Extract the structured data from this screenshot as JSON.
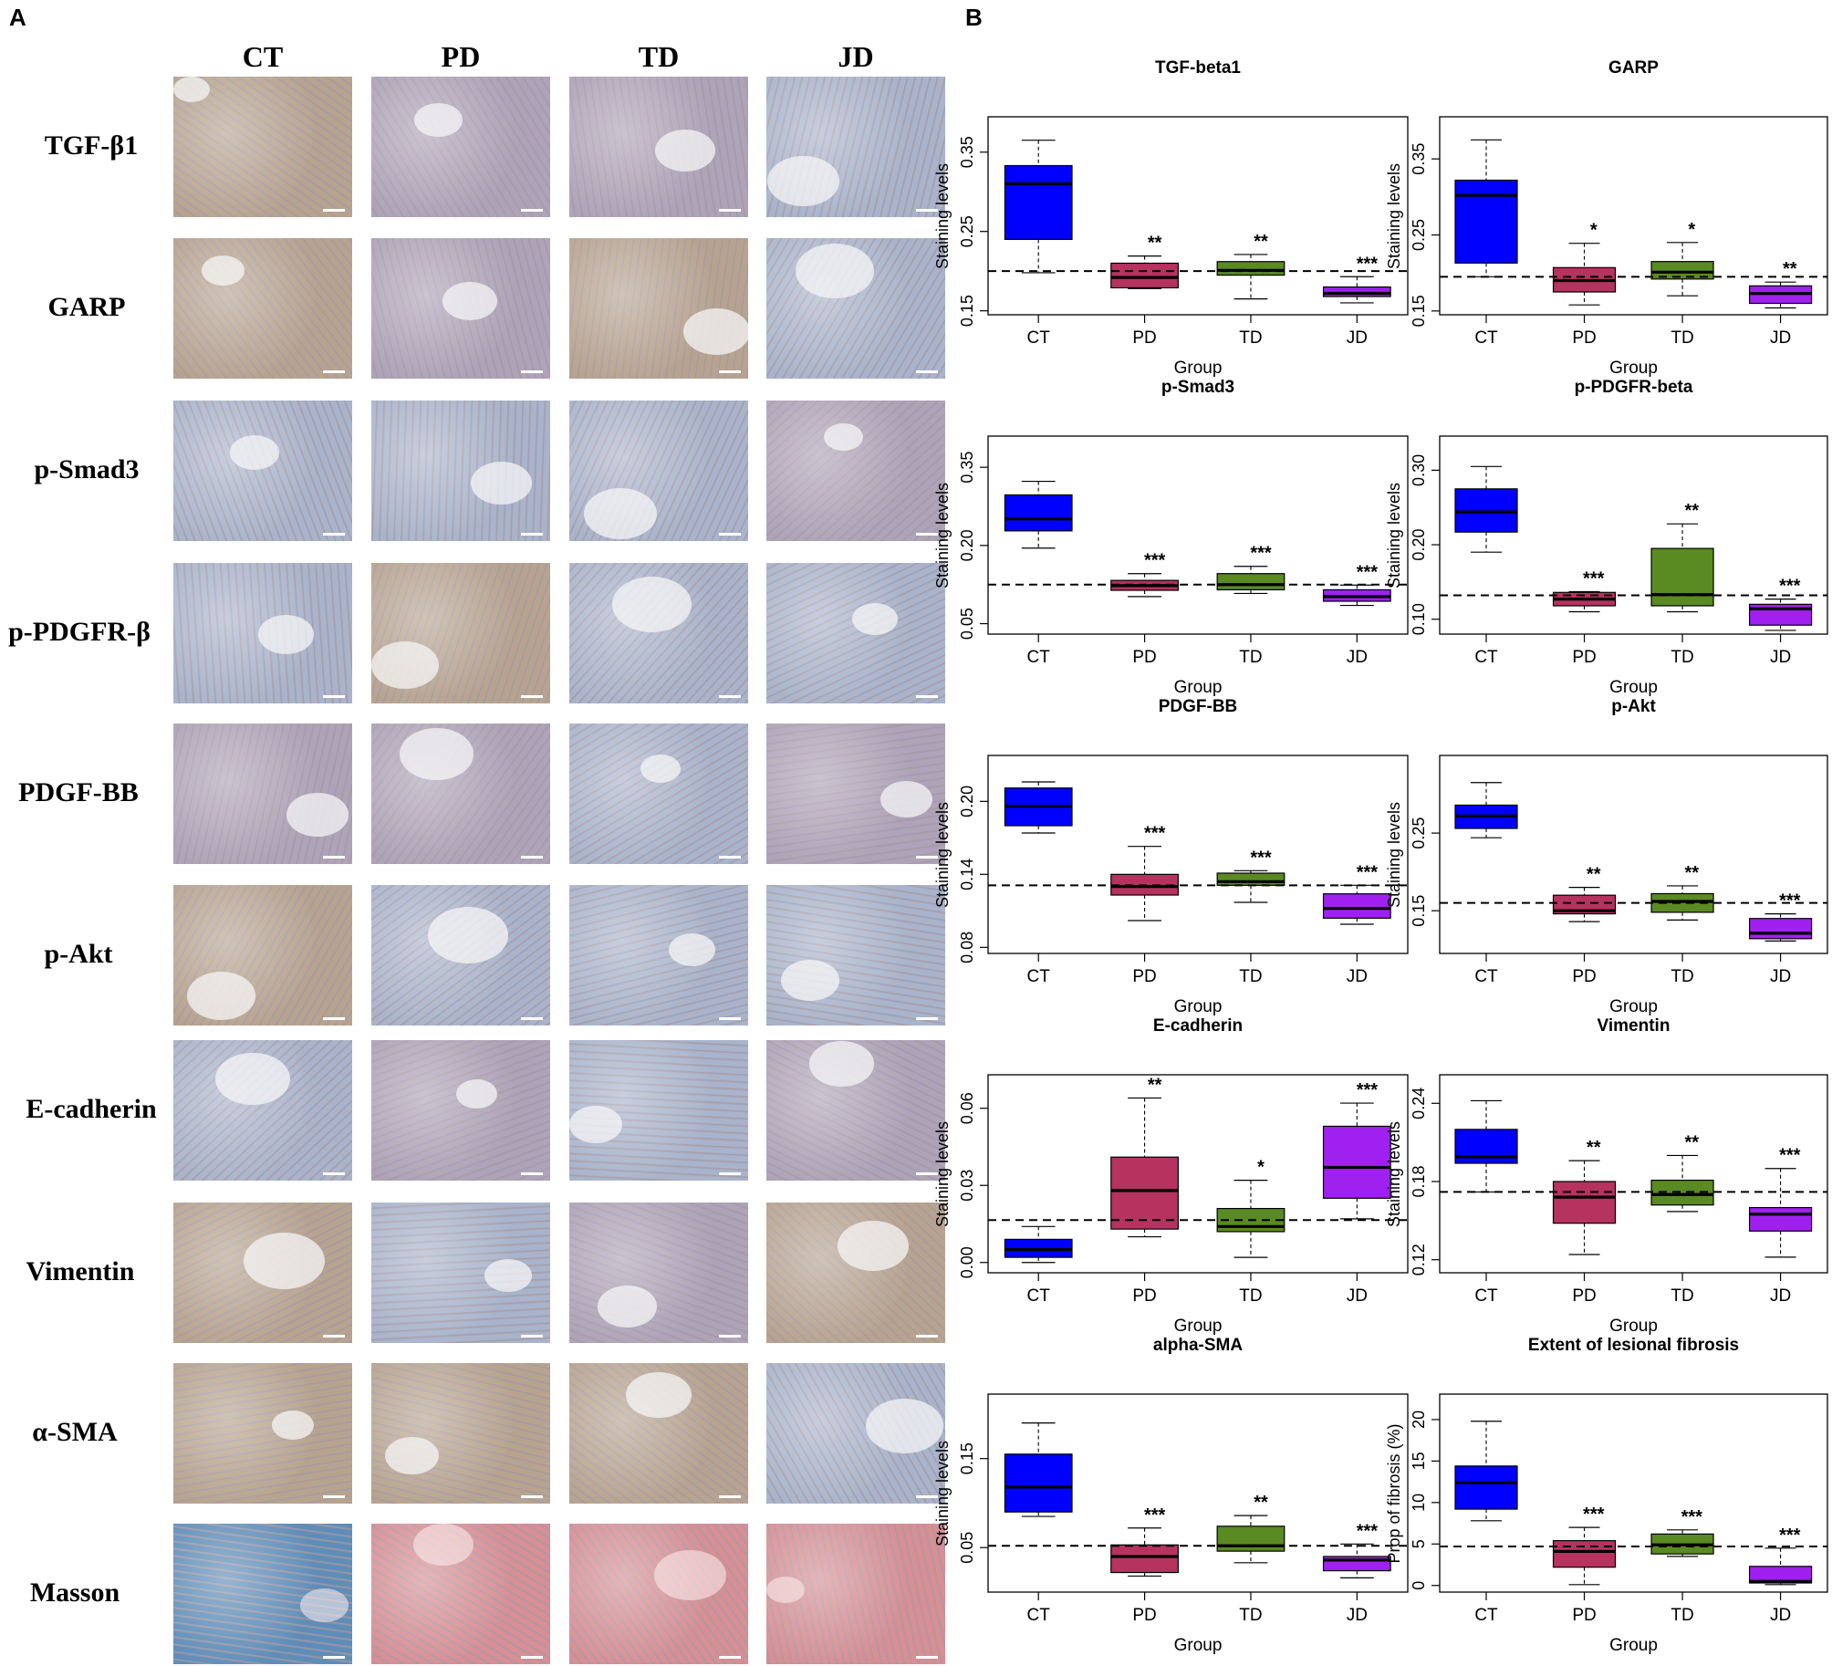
{
  "panels": {
    "a": "A",
    "b": "B"
  },
  "histology": {
    "columns": [
      "CT",
      "PD",
      "TD",
      "JD"
    ],
    "rows": [
      "TGF-β1",
      "GARP",
      "p-Smad3",
      "p-PDGFR-β",
      "PDGF-BB",
      "p-Akt",
      "E-cadherin",
      "Vimentin",
      "α-SMA",
      "Masson"
    ],
    "colors": {
      "ihc_brown": "#b8a48e",
      "ihc_blue": "#a9b4cc",
      "ihc_purple": "#aea3b8",
      "masson_blue": "#5f8db8",
      "masson_red": "#d88e93"
    }
  },
  "chart_data": [
    {
      "type": "box",
      "title": "TGF-beta1",
      "xlabel": "Group",
      "ylabel": "Staining levels",
      "categories": [
        "CT",
        "PD",
        "TD",
        "JD"
      ],
      "yticks": [
        "0.15",
        "0.25",
        "0.35"
      ],
      "ylim": [
        0.145,
        0.375
      ],
      "reference_line": 0.2,
      "boxes": [
        {
          "whisker_low": 0.198,
          "q1": 0.24,
          "median": 0.31,
          "q3": 0.333,
          "whisker_high": 0.365
        },
        {
          "whisker_low": 0.178,
          "q1": 0.179,
          "median": 0.192,
          "q3": 0.21,
          "whisker_high": 0.219
        },
        {
          "whisker_low": 0.165,
          "q1": 0.195,
          "median": 0.201,
          "q3": 0.212,
          "whisker_high": 0.221
        },
        {
          "whisker_low": 0.16,
          "q1": 0.168,
          "median": 0.172,
          "q3": 0.18,
          "whisker_high": 0.193
        }
      ],
      "significance": [
        "",
        "**",
        "**",
        "***"
      ]
    },
    {
      "type": "box",
      "title": "GARP",
      "xlabel": "Group",
      "ylabel": "Staining levels",
      "categories": [
        "CT",
        "PD",
        "TD",
        "JD"
      ],
      "yticks": [
        "0.15",
        "0.25",
        "0.35"
      ],
      "ylim": [
        0.145,
        0.385
      ],
      "reference_line": 0.195,
      "boxes": [
        {
          "whisker_low": 0.195,
          "q1": 0.213,
          "median": 0.302,
          "q3": 0.322,
          "whisker_high": 0.375
        },
        {
          "whisker_low": 0.158,
          "q1": 0.175,
          "median": 0.19,
          "q3": 0.207,
          "whisker_high": 0.239
        },
        {
          "whisker_low": 0.17,
          "q1": 0.192,
          "median": 0.201,
          "q3": 0.215,
          "whisker_high": 0.24
        },
        {
          "whisker_low": 0.154,
          "q1": 0.16,
          "median": 0.173,
          "q3": 0.183,
          "whisker_high": 0.188
        }
      ],
      "significance": [
        "",
        "*",
        "*",
        "**"
      ]
    },
    {
      "type": "box",
      "title": "p-Smad3",
      "xlabel": "Group",
      "ylabel": "Staining levels",
      "categories": [
        "CT",
        "PD",
        "TD",
        "JD"
      ],
      "yticks": [
        "0.05",
        "0.20",
        "0.35"
      ],
      "ylim": [
        0.03,
        0.38
      ],
      "reference_line": 0.125,
      "boxes": [
        {
          "whisker_low": 0.195,
          "q1": 0.228,
          "median": 0.251,
          "q3": 0.297,
          "whisker_high": 0.323
        },
        {
          "whisker_low": 0.102,
          "q1": 0.114,
          "median": 0.123,
          "q3": 0.133,
          "whisker_high": 0.146
        },
        {
          "whisker_low": 0.108,
          "q1": 0.115,
          "median": 0.125,
          "q3": 0.146,
          "whisker_high": 0.16
        },
        {
          "whisker_low": 0.085,
          "q1": 0.093,
          "median": 0.102,
          "q3": 0.115,
          "whisker_high": 0.124
        }
      ],
      "significance": [
        "",
        "***",
        "***",
        "***"
      ]
    },
    {
      "type": "box",
      "title": "p-PDGFR-beta",
      "xlabel": "Group",
      "ylabel": "Staining levels",
      "categories": [
        "CT",
        "PD",
        "TD",
        "JD"
      ],
      "yticks": [
        "0.10",
        "0.20",
        "0.30"
      ],
      "ylim": [
        0.08,
        0.325
      ],
      "reference_line": 0.132,
      "boxes": [
        {
          "whisker_low": 0.19,
          "q1": 0.217,
          "median": 0.244,
          "q3": 0.275,
          "whisker_high": 0.305
        },
        {
          "whisker_low": 0.11,
          "q1": 0.118,
          "median": 0.127,
          "q3": 0.136,
          "whisker_high": 0.137
        },
        {
          "whisker_low": 0.11,
          "q1": 0.118,
          "median": 0.133,
          "q3": 0.195,
          "whisker_high": 0.228
        },
        {
          "whisker_low": 0.085,
          "q1": 0.092,
          "median": 0.114,
          "q3": 0.12,
          "whisker_high": 0.127
        }
      ],
      "significance": [
        "",
        "***",
        "**",
        "***"
      ]
    },
    {
      "type": "box",
      "title": "PDGF-BB",
      "xlabel": "Group",
      "ylabel": "Staining levels",
      "categories": [
        "CT",
        "PD",
        "TD",
        "JD"
      ],
      "yticks": [
        "0.08",
        "0.14",
        "0.20"
      ],
      "ylim": [
        0.075,
        0.225
      ],
      "reference_line": 0.131,
      "boxes": [
        {
          "whisker_low": 0.174,
          "q1": 0.18,
          "median": 0.196,
          "q3": 0.211,
          "whisker_high": 0.216
        },
        {
          "whisker_low": 0.102,
          "q1": 0.123,
          "median": 0.13,
          "q3": 0.14,
          "whisker_high": 0.163
        },
        {
          "whisker_low": 0.117,
          "q1": 0.131,
          "median": 0.134,
          "q3": 0.141,
          "whisker_high": 0.143
        },
        {
          "whisker_low": 0.099,
          "q1": 0.104,
          "median": 0.112,
          "q3": 0.124,
          "whisker_high": 0.131
        }
      ],
      "significance": [
        "",
        "***",
        "***",
        "***"
      ]
    },
    {
      "type": "box",
      "title": "p-Akt",
      "xlabel": "Group",
      "ylabel": "Staining levels",
      "categories": [
        "CT",
        "PD",
        "TD",
        "JD"
      ],
      "yticks": [
        "0.15",
        "0.25"
      ],
      "ylim": [
        0.095,
        0.33
      ],
      "reference_line": 0.16,
      "boxes": [
        {
          "whisker_low": 0.244,
          "q1": 0.256,
          "median": 0.272,
          "q3": 0.286,
          "whisker_high": 0.315
        },
        {
          "whisker_low": 0.136,
          "q1": 0.146,
          "median": 0.15,
          "q3": 0.17,
          "whisker_high": 0.18
        },
        {
          "whisker_low": 0.138,
          "q1": 0.148,
          "median": 0.162,
          "q3": 0.172,
          "whisker_high": 0.182
        },
        {
          "whisker_low": 0.111,
          "q1": 0.114,
          "median": 0.121,
          "q3": 0.14,
          "whisker_high": 0.146
        }
      ],
      "significance": [
        "",
        "**",
        "**",
        "***"
      ]
    },
    {
      "type": "box",
      "title": "E-cadherin",
      "xlabel": "Group",
      "ylabel": "Staining levels",
      "categories": [
        "CT",
        "PD",
        "TD",
        "JD"
      ],
      "yticks": [
        "0.00",
        "0.03",
        "0.06"
      ],
      "ylim": [
        -0.004,
        0.067
      ],
      "reference_line": 0.0165,
      "boxes": [
        {
          "whisker_low": 0.0,
          "q1": 0.002,
          "median": 0.005,
          "q3": 0.009,
          "whisker_high": 0.014
        },
        {
          "whisker_low": 0.01,
          "q1": 0.013,
          "median": 0.028,
          "q3": 0.041,
          "whisker_high": 0.064
        },
        {
          "whisker_low": 0.002,
          "q1": 0.012,
          "median": 0.014,
          "q3": 0.021,
          "whisker_high": 0.032
        },
        {
          "whisker_low": 0.017,
          "q1": 0.025,
          "median": 0.037,
          "q3": 0.053,
          "whisker_high": 0.062
        }
      ],
      "significance": [
        "",
        "**",
        "*",
        "***"
      ]
    },
    {
      "type": "box",
      "title": "Vimentin",
      "xlabel": "Group",
      "ylabel": "Staining levels",
      "categories": [
        "CT",
        "PD",
        "TD",
        "JD"
      ],
      "yticks": [
        "0.12",
        "0.18",
        "0.24"
      ],
      "ylim": [
        0.11,
        0.25
      ],
      "reference_line": 0.172,
      "boxes": [
        {
          "whisker_low": 0.172,
          "q1": 0.194,
          "median": 0.199,
          "q3": 0.22,
          "whisker_high": 0.242
        },
        {
          "whisker_low": 0.124,
          "q1": 0.148,
          "median": 0.168,
          "q3": 0.18,
          "whisker_high": 0.196
        },
        {
          "whisker_low": 0.157,
          "q1": 0.162,
          "median": 0.17,
          "q3": 0.181,
          "whisker_high": 0.2
        },
        {
          "whisker_low": 0.122,
          "q1": 0.142,
          "median": 0.155,
          "q3": 0.16,
          "whisker_high": 0.19
        }
      ],
      "significance": [
        "",
        "**",
        "**",
        "***"
      ]
    },
    {
      "type": "box",
      "title": "alpha-SMA",
      "xlabel": "Group",
      "ylabel": "Staining levels",
      "categories": [
        "CT",
        "PD",
        "TD",
        "JD"
      ],
      "yticks": [
        "0.05",
        "0.15"
      ],
      "ylim": [
        0.0,
        0.205
      ],
      "reference_line": 0.052,
      "boxes": [
        {
          "whisker_low": 0.085,
          "q1": 0.09,
          "median": 0.118,
          "q3": 0.155,
          "whisker_high": 0.19
        },
        {
          "whisker_low": 0.018,
          "q1": 0.022,
          "median": 0.04,
          "q3": 0.053,
          "whisker_high": 0.072
        },
        {
          "whisker_low": 0.033,
          "q1": 0.046,
          "median": 0.052,
          "q3": 0.074,
          "whisker_high": 0.086
        },
        {
          "whisker_low": 0.016,
          "q1": 0.024,
          "median": 0.036,
          "q3": 0.04,
          "whisker_high": 0.054
        }
      ],
      "significance": [
        "",
        "***",
        "**",
        "***"
      ]
    },
    {
      "type": "box",
      "title": "Extent of lesional fibrosis",
      "xlabel": "Group",
      "ylabel": "Prop of fibrosis (%)",
      "categories": [
        "CT",
        "PD",
        "TD",
        "JD"
      ],
      "yticks": [
        "0",
        "5",
        "10",
        "15",
        "20"
      ],
      "ylim": [
        -0.8,
        21.2
      ],
      "reference_line": 4.7,
      "boxes": [
        {
          "whisker_low": 7.8,
          "q1": 9.2,
          "median": 12.4,
          "q3": 14.4,
          "whisker_high": 19.8
        },
        {
          "whisker_low": 0.1,
          "q1": 2.2,
          "median": 4.1,
          "q3": 5.4,
          "whisker_high": 7.0
        },
        {
          "whisker_low": 3.5,
          "q1": 3.8,
          "median": 4.9,
          "q3": 6.2,
          "whisker_high": 6.7
        },
        {
          "whisker_low": 0.1,
          "q1": 0.3,
          "median": 0.5,
          "q3": 2.3,
          "whisker_high": 4.5
        }
      ],
      "significance": [
        "",
        "***",
        "***",
        "***"
      ]
    }
  ],
  "colors": {
    "CT": "#0000ff",
    "PD": "#b5335e",
    "TD": "#5a8a22",
    "JD": "#a020f0",
    "axis": "#000000"
  }
}
